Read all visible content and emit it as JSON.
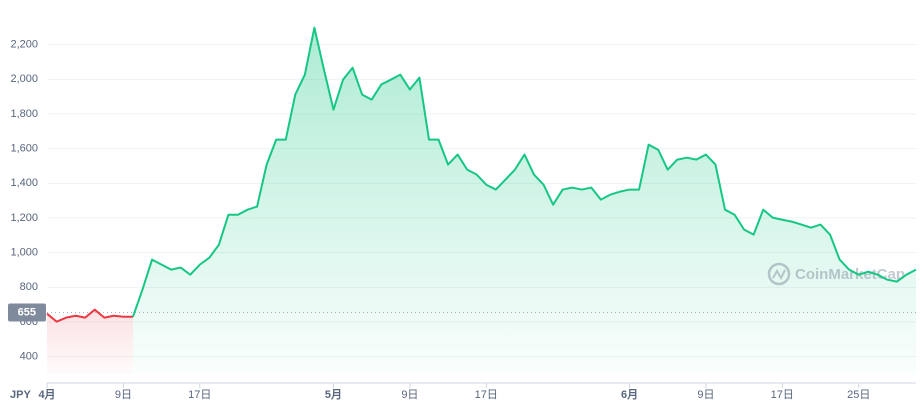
{
  "chart_data": {
    "type": "line",
    "currency": "JPY",
    "watermark": "CoinMarketCap",
    "reference": {
      "value": 655,
      "label": "655"
    },
    "x": [
      0,
      1,
      2,
      3,
      4,
      5,
      6,
      7,
      8,
      9,
      10,
      11,
      12,
      13,
      14,
      15,
      16,
      17,
      18,
      19,
      20,
      21,
      22,
      23,
      24,
      25,
      26,
      27,
      28,
      29,
      30,
      31,
      32,
      33,
      34,
      35,
      36,
      37,
      38,
      39,
      40,
      41,
      42,
      43,
      44,
      45,
      46,
      47,
      48,
      49,
      50,
      51,
      52,
      53,
      54,
      55,
      56,
      57,
      58,
      59,
      60,
      61,
      62,
      63,
      64,
      65,
      66,
      67,
      68,
      69,
      70,
      71,
      72,
      73,
      74,
      75,
      76,
      77,
      78,
      79,
      80,
      81,
      82,
      83,
      84,
      85,
      86,
      87,
      88,
      89,
      90,
      91
    ],
    "series": [
      {
        "name": "JPY",
        "up_color": "#16c784",
        "down_color": "#ea3943",
        "values": [
          648,
          602,
          625,
          636,
          625,
          671,
          625,
          636,
          630,
          630,
          787,
          960,
          931,
          902,
          914,
          873,
          931,
          971,
          1046,
          1219,
          1219,
          1248,
          1266,
          1508,
          1652,
          1652,
          1912,
          2027,
          2298,
          2056,
          1825,
          1998,
          2067,
          1912,
          1883,
          1970,
          1998,
          2027,
          1941,
          2010,
          1652,
          1652,
          1508,
          1566,
          1479,
          1450,
          1392,
          1364,
          1421,
          1479,
          1566,
          1450,
          1392,
          1277,
          1364,
          1375,
          1364,
          1375,
          1306,
          1335,
          1352,
          1364,
          1364,
          1623,
          1594,
          1479,
          1537,
          1548,
          1537,
          1566,
          1508,
          1248,
          1219,
          1133,
          1104,
          1248,
          1202,
          1190,
          1179,
          1162,
          1144,
          1162,
          1104,
          960,
          902,
          873,
          890,
          873,
          844,
          833,
          873,
          902
        ]
      }
    ],
    "xlim": [
      0,
      91
    ],
    "xticks": [
      {
        "value": 0,
        "label": "4月"
      },
      {
        "value": 8,
        "label": "9日"
      },
      {
        "value": 16,
        "label": "17日"
      },
      {
        "value": 30,
        "label": "5月"
      },
      {
        "value": 38,
        "label": "9日"
      },
      {
        "value": 46,
        "label": "17日"
      },
      {
        "value": 61,
        "label": "6月"
      },
      {
        "value": 69,
        "label": "9日"
      },
      {
        "value": 77,
        "label": "17日"
      },
      {
        "value": 85,
        "label": "25日"
      }
    ],
    "ylim": [
      300,
      2400
    ],
    "yticks": [
      400,
      600,
      {
        "value": 800,
        "label": "800"
      },
      {
        "value": 1000,
        "label": "1,000"
      },
      {
        "value": 1200,
        "label": "1,200"
      },
      {
        "value": 1400,
        "label": "1,400"
      },
      {
        "value": 1600,
        "label": "1,600"
      },
      {
        "value": 1800,
        "label": "1,800"
      },
      {
        "value": 2000,
        "label": "2,000"
      },
      {
        "value": 2200,
        "label": "2,200"
      }
    ],
    "grid": true
  }
}
